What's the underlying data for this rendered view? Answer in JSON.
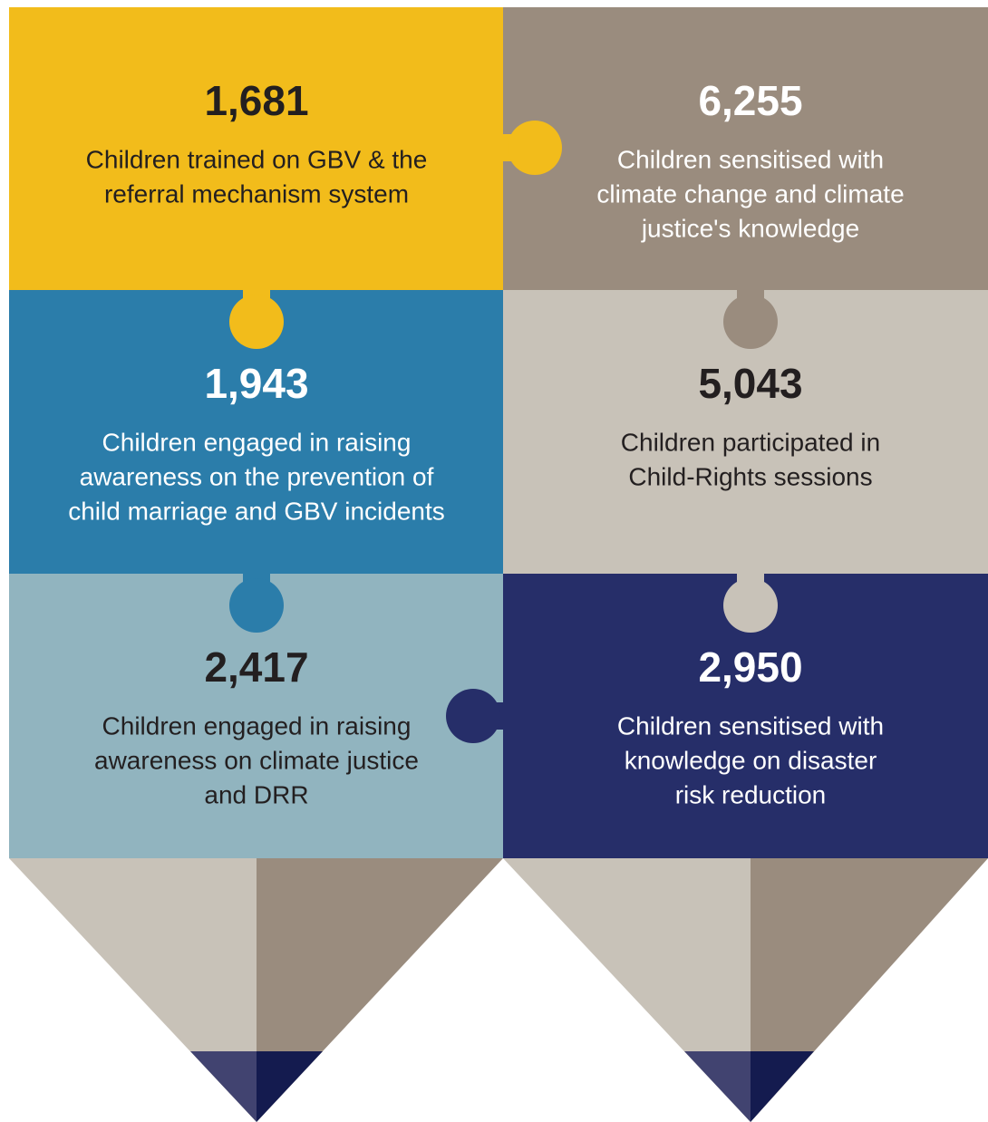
{
  "tiles": [
    {
      "number": "1,681",
      "label": [
        "Children trained on GBV & the",
        "referral mechanism system"
      ]
    },
    {
      "number": "6,255",
      "label": [
        "Children sensitised with",
        "climate change and climate",
        "justice's knowledge"
      ]
    },
    {
      "number": "1,943",
      "label": [
        "Children engaged in raising",
        "awareness on the prevention of",
        "child marriage and GBV incidents"
      ]
    },
    {
      "number": "5,043",
      "label": [
        "Children participated in",
        "Child-Rights sessions"
      ]
    },
    {
      "number": "2,417",
      "label": [
        "Children engaged in raising",
        "awareness on climate justice",
        "and DRR"
      ]
    },
    {
      "number": "2,950",
      "label": [
        "Children sensitised with",
        "knowledge on disaster",
        "risk reduction"
      ]
    }
  ]
}
